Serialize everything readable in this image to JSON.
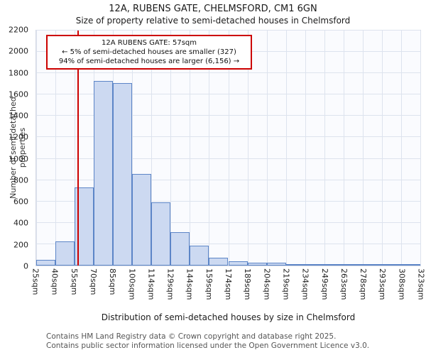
{
  "title": "12A, RUBENS GATE, CHELMSFORD, CM1 6GN",
  "subtitle": "Size of property relative to semi-detached houses in Chelmsford",
  "annotation": {
    "line1": "12A RUBENS GATE: 57sqm",
    "line2": "← 5% of semi-detached houses are smaller (327)",
    "line3": "94% of semi-detached houses are larger (6,156) →"
  },
  "chart_data": {
    "type": "bar",
    "title": "12A, RUBENS GATE, CHELMSFORD, CM1 6GN",
    "subtitle": "Size of property relative to semi-detached houses in Chelmsford",
    "categories": [
      "25sqm",
      "40sqm",
      "55sqm",
      "70sqm",
      "85sqm",
      "100sqm",
      "114sqm",
      "129sqm",
      "144sqm",
      "159sqm",
      "174sqm",
      "189sqm",
      "204sqm",
      "219sqm",
      "234sqm",
      "249sqm",
      "263sqm",
      "278sqm",
      "293sqm",
      "308sqm",
      "323sqm"
    ],
    "values": [
      50,
      225,
      730,
      1730,
      1705,
      855,
      590,
      310,
      185,
      75,
      40,
      30,
      25,
      15,
      10,
      5,
      0,
      0,
      0,
      0
    ],
    "xlabel": "Distribution of semi-detached houses by size in Chelmsford",
    "ylabel": "Number of semi-detached properties",
    "ylim": [
      0,
      2200
    ],
    "ytick_step": 200,
    "grid": true,
    "marker": {
      "value_sqm": 57,
      "color": "#cc0000"
    },
    "bar_fill": "#ccd9f1",
    "bar_border": "#5c85c7"
  },
  "footer": {
    "line1": "Contains HM Land Registry data © Crown copyright and database right 2025.",
    "line2": "Contains public sector information licensed under the Open Government Licence v3.0."
  }
}
